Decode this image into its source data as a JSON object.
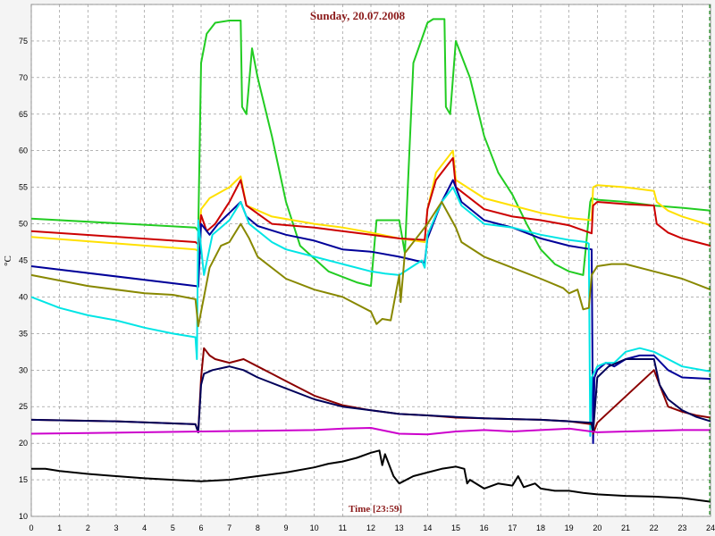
{
  "chart_data": {
    "type": "line",
    "title": "Sunday, 20.07.2008",
    "xlabel": "Time [23:59]",
    "ylabel": "°C",
    "xlim": [
      0,
      24
    ],
    "ylim": [
      10,
      80
    ],
    "x_ticks": [
      "0",
      "1",
      "2",
      "3",
      "4",
      "5",
      "6",
      "7",
      "8",
      "9",
      "10",
      "11",
      "12",
      "13",
      "14",
      "15",
      "16",
      "17",
      "18",
      "19",
      "20",
      "21",
      "22",
      "23",
      "24"
    ],
    "y_ticks": [
      "10",
      "15",
      "20",
      "25",
      "30",
      "35",
      "40",
      "45",
      "50",
      "55",
      "60",
      "65",
      "70",
      "75"
    ],
    "grid": true,
    "series": [
      {
        "color": "#22cc22",
        "x": [
          0,
          5.8,
          5.9,
          6.0,
          6.2,
          6.5,
          7.0,
          7.4,
          7.45,
          7.6,
          7.8,
          8.0,
          8.5,
          9.0,
          9.5,
          10.5,
          11.5,
          12.0,
          12.2,
          13.0,
          13.2,
          13.5,
          14.0,
          14.2,
          14.6,
          14.65,
          14.8,
          15.0,
          15.5,
          16.0,
          16.5,
          17.0,
          17.5,
          18.0,
          18.5,
          19.0,
          19.5,
          19.6,
          19.7,
          19.75,
          19.8,
          20.0,
          21.0,
          22.0,
          23.0,
          24.0
        ],
        "y": [
          50.7,
          49.5,
          49.0,
          72,
          76,
          77.5,
          77.8,
          77.8,
          66,
          65,
          74,
          70,
          62,
          53,
          47,
          43.5,
          42,
          41.5,
          50.5,
          50.5,
          46,
          72,
          77.5,
          78,
          78,
          66,
          65,
          75,
          70,
          62,
          57,
          54,
          50,
          46.5,
          44.5,
          43.5,
          43,
          47,
          51,
          53,
          53.5,
          53.3,
          53,
          52.5,
          52.2,
          51.8
        ]
      },
      {
        "color": "#ffe000",
        "x": [
          0,
          5.8,
          5.9,
          6.0,
          6.3,
          7.0,
          7.4,
          7.6,
          8.5,
          10,
          11,
          12,
          13,
          13.9,
          14.0,
          14.3,
          14.9,
          15.0,
          16,
          17,
          18,
          19,
          19.8,
          19.85,
          20.0,
          21,
          22,
          22.1,
          22.5,
          23,
          24
        ],
        "y": [
          48.2,
          46.5,
          46.3,
          52,
          53.5,
          55,
          56.5,
          52.5,
          51,
          50,
          49.5,
          48.8,
          48,
          47.5,
          52,
          57,
          60,
          56,
          53.5,
          52.5,
          51.5,
          50.8,
          50.5,
          55,
          55.3,
          55,
          54.5,
          53,
          51.8,
          51,
          49.8
        ]
      },
      {
        "color": "#cc0000",
        "x": [
          0,
          5.8,
          5.9,
          6.0,
          6.2,
          6.5,
          7.0,
          7.4,
          7.6,
          8.5,
          10,
          11,
          12,
          13,
          13.9,
          14.0,
          14.3,
          14.9,
          15.0,
          16,
          17,
          18,
          19,
          19.8,
          19.85,
          20.0,
          21,
          22,
          22.1,
          22.5,
          23,
          24
        ],
        "y": [
          49,
          47.5,
          47.2,
          51.2,
          49,
          50,
          53,
          56,
          52.5,
          50,
          49.5,
          49,
          48.5,
          48,
          47.8,
          52,
          56,
          59,
          55,
          52,
          51,
          50.5,
          49.8,
          48.7,
          52.5,
          53,
          52.7,
          52.5,
          50,
          48.8,
          48,
          47
        ]
      },
      {
        "color": "#000099",
        "x": [
          0,
          5.8,
          5.9,
          6.0,
          6.3,
          6.6,
          7.0,
          7.4,
          7.6,
          8,
          9,
          10,
          11,
          12,
          13,
          13.9,
          14.0,
          14.5,
          14.9,
          15.2,
          16,
          17,
          18,
          19,
          19.8,
          19.85,
          19.9,
          20.0,
          20.3,
          20.6,
          21,
          21.5,
          22,
          22.5,
          23,
          24
        ],
        "y": [
          44.2,
          41.5,
          41.4,
          50,
          48.5,
          50,
          51.5,
          53,
          51,
          49.7,
          48.5,
          47.7,
          46.5,
          46.2,
          45.5,
          44.7,
          48,
          53,
          56,
          53,
          50.5,
          49.5,
          48,
          47,
          46.5,
          20,
          29,
          30,
          31,
          30.5,
          31.5,
          32,
          32,
          30,
          29,
          28.8
        ]
      },
      {
        "color": "#00e5e5",
        "x": [
          0,
          1,
          2,
          3,
          4,
          5,
          5.8,
          5.85,
          5.9,
          6.1,
          6.4,
          7.0,
          7.4,
          7.7,
          8.5,
          9,
          10,
          11,
          12,
          12.5,
          13,
          13.8,
          13.9,
          14.0,
          14.5,
          14.9,
          15.2,
          16,
          17,
          18,
          19,
          19.6,
          19.7,
          19.75,
          19.8,
          20.0,
          20.3,
          20.6,
          21,
          21.5,
          22,
          22.5,
          23,
          24
        ],
        "y": [
          40,
          38.5,
          37.5,
          36.8,
          35.8,
          35,
          34.5,
          31.5,
          50.5,
          43,
          48.5,
          50.5,
          53,
          50,
          47.5,
          46.5,
          45.5,
          44.5,
          43.5,
          43.2,
          43,
          45,
          44,
          48.5,
          53,
          55,
          52.5,
          50,
          49.5,
          48.5,
          47.8,
          47.5,
          47.3,
          21,
          29,
          30.5,
          31,
          31,
          32.5,
          33,
          32.5,
          31.5,
          30.5,
          29.8
        ]
      },
      {
        "color": "#888800",
        "x": [
          0,
          2,
          4,
          5,
          5.8,
          5.9,
          6.0,
          6.1,
          6.3,
          6.7,
          7.0,
          7.4,
          7.7,
          8,
          9,
          10,
          11,
          11.5,
          12,
          12.2,
          12.4,
          12.7,
          13,
          13.05,
          13.2,
          14,
          14.5,
          15,
          15.2,
          16,
          17,
          18,
          18.8,
          19.0,
          19.3,
          19.5,
          19.7,
          19.8,
          20,
          20.5,
          21,
          22,
          23,
          24
        ],
        "y": [
          43,
          41.5,
          40.5,
          40.3,
          39.7,
          36,
          38,
          40,
          44,
          47,
          47.5,
          50,
          48,
          45.5,
          42.5,
          41,
          40,
          39,
          38,
          36.3,
          37,
          36.8,
          43,
          39.3,
          46,
          50,
          53,
          49.5,
          47.5,
          45.5,
          44,
          42.5,
          41.2,
          40.5,
          41,
          38.3,
          38.5,
          43,
          44.2,
          44.5,
          44.5,
          43.5,
          42.5,
          41
        ]
      },
      {
        "color": "#8b0000",
        "x": [
          0,
          3,
          5.8,
          5.9,
          6.0,
          6.1,
          6.3,
          6.5,
          7.0,
          7.5,
          8,
          8.5,
          9,
          10,
          11,
          12,
          13,
          14,
          15,
          16,
          17,
          18,
          19,
          19.8,
          19.85,
          20,
          22,
          22.5,
          23,
          23.5,
          24
        ],
        "y": [
          23.2,
          23,
          22.6,
          21.5,
          29,
          33,
          32,
          31.5,
          31,
          31.5,
          30.5,
          29.5,
          28.5,
          26.5,
          25.2,
          24.5,
          24,
          23.8,
          23.5,
          23.4,
          23.3,
          23.2,
          23,
          22.6,
          21.3,
          22.8,
          30,
          25,
          24.3,
          23.8,
          23.5
        ]
      },
      {
        "color": "#00005a",
        "x": [
          0,
          3,
          5.8,
          5.9,
          6.0,
          6.1,
          6.4,
          7.0,
          7.5,
          8,
          9,
          10,
          11,
          12,
          13,
          14,
          15,
          16,
          17,
          18,
          19,
          19.8,
          19.85,
          20,
          20.4,
          21,
          21.5,
          22,
          22.2,
          22.5,
          23,
          23.5,
          24
        ],
        "y": [
          23.2,
          23,
          22.6,
          21.5,
          28,
          29.5,
          30,
          30.5,
          30,
          29,
          27.5,
          26,
          25,
          24.5,
          24,
          23.8,
          23.6,
          23.4,
          23.3,
          23.2,
          23,
          22.8,
          21.5,
          29,
          30.5,
          31.5,
          31.5,
          31.5,
          28,
          26,
          24.5,
          23.6,
          23
        ]
      },
      {
        "color": "#cc00cc",
        "x": [
          0,
          2,
          4,
          6,
          8,
          10,
          11,
          12,
          13,
          14,
          15,
          16,
          17,
          18,
          19,
          20,
          21,
          22,
          23,
          24
        ],
        "y": [
          21.3,
          21.4,
          21.5,
          21.6,
          21.7,
          21.8,
          22,
          22.1,
          21.3,
          21.2,
          21.6,
          21.8,
          21.6,
          21.8,
          22,
          21.5,
          21.6,
          21.7,
          21.8,
          21.8
        ]
      },
      {
        "color": "#000000",
        "x": [
          0,
          0.5,
          1,
          2,
          3,
          4,
          5,
          6,
          7,
          8,
          9,
          10,
          10.5,
          11,
          11.5,
          12,
          12.3,
          12.4,
          12.5,
          12.8,
          13,
          13.5,
          14,
          14.5,
          15,
          15.3,
          15.4,
          15.5,
          16,
          16.5,
          17,
          17.2,
          17.4,
          17.8,
          18,
          18.5,
          19,
          19.5,
          20,
          21,
          22,
          23,
          24
        ],
        "y": [
          16.5,
          16.5,
          16.2,
          15.8,
          15.5,
          15.2,
          15,
          14.8,
          15,
          15.5,
          16,
          16.7,
          17.2,
          17.5,
          18,
          18.7,
          19,
          17,
          18.5,
          15.5,
          14.5,
          15.5,
          16,
          16.5,
          16.8,
          16.5,
          14.5,
          15,
          13.8,
          14.5,
          14.2,
          15.5,
          14,
          14.5,
          13.8,
          13.5,
          13.5,
          13.2,
          13,
          12.8,
          12.7,
          12.5,
          12
        ]
      }
    ]
  }
}
